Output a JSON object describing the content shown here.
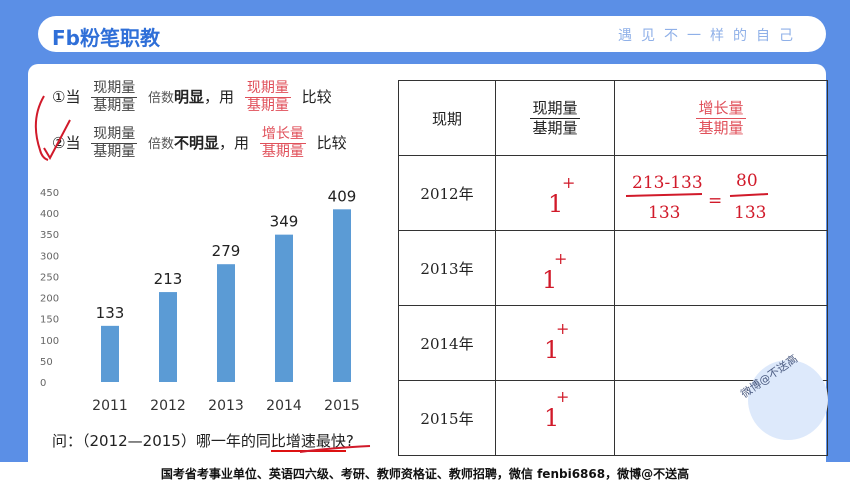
{
  "header": {
    "logo_text": "Fb粉笔职教",
    "slogan": "遇见不一样的自己"
  },
  "rules": {
    "rule1": {
      "prefix": "①当",
      "frac_num": "现期量",
      "frac_den": "基期量",
      "middle_a": "倍数",
      "middle_bold": "明显",
      "middle_b": "，用",
      "compare_num": "现期量",
      "compare_den": "基期量",
      "suffix": "比较"
    },
    "rule2": {
      "prefix": "②当",
      "frac_num": "现期量",
      "frac_den": "基期量",
      "middle_a": "倍数",
      "middle_bold": "不明显",
      "middle_b": "，用",
      "compare_num": "增长量",
      "compare_den": "基期量",
      "suffix": "比较"
    }
  },
  "chart_data": {
    "type": "bar",
    "categories": [
      "2011",
      "2012",
      "2013",
      "2014",
      "2015"
    ],
    "values": [
      133,
      213,
      279,
      349,
      409
    ],
    "ylim": [
      0,
      450
    ],
    "yticks": [
      "0",
      "50",
      "100",
      "150",
      "200",
      "250",
      "300",
      "350",
      "400",
      "450"
    ],
    "bar_color": "#5b9bd5",
    "grid": false
  },
  "question": {
    "prefix": "问：（2012—2015）哪一年的同",
    "underlined": "比增速最快",
    "suffix": "?"
  },
  "table": {
    "header": {
      "col1": "现期",
      "col2_num": "现期量",
      "col2_den": "基期量",
      "col3_num": "增长量",
      "col3_den": "基期量"
    },
    "rows": [
      {
        "year": "2012年",
        "ratio": "1⁺",
        "calc": "213-133 / 133 = 80 / 133"
      },
      {
        "year": "2013年",
        "ratio": "1⁺",
        "calc": ""
      },
      {
        "year": "2014年",
        "ratio": "1⁺",
        "calc": ""
      },
      {
        "year": "2015年",
        "ratio": "1⁺",
        "calc": ""
      }
    ]
  },
  "handwriting": {
    "calc_num": "213-133",
    "calc_den": "133",
    "calc_eq": "=",
    "calc_res_num": "80",
    "calc_res_den": "133",
    "ratio_mark": "1",
    "ratio_sup": "+"
  },
  "watermark": "微博@不送高",
  "footer": "国考省考事业单位、英语四六级、考研、教师资格证、教师招聘，微信 fenbi6868，微博@不送高",
  "colors": {
    "background": "#5b8fe6",
    "accent_red": "#e0505a",
    "ink_red": "#d11a2a",
    "bar": "#5b9bd5"
  }
}
